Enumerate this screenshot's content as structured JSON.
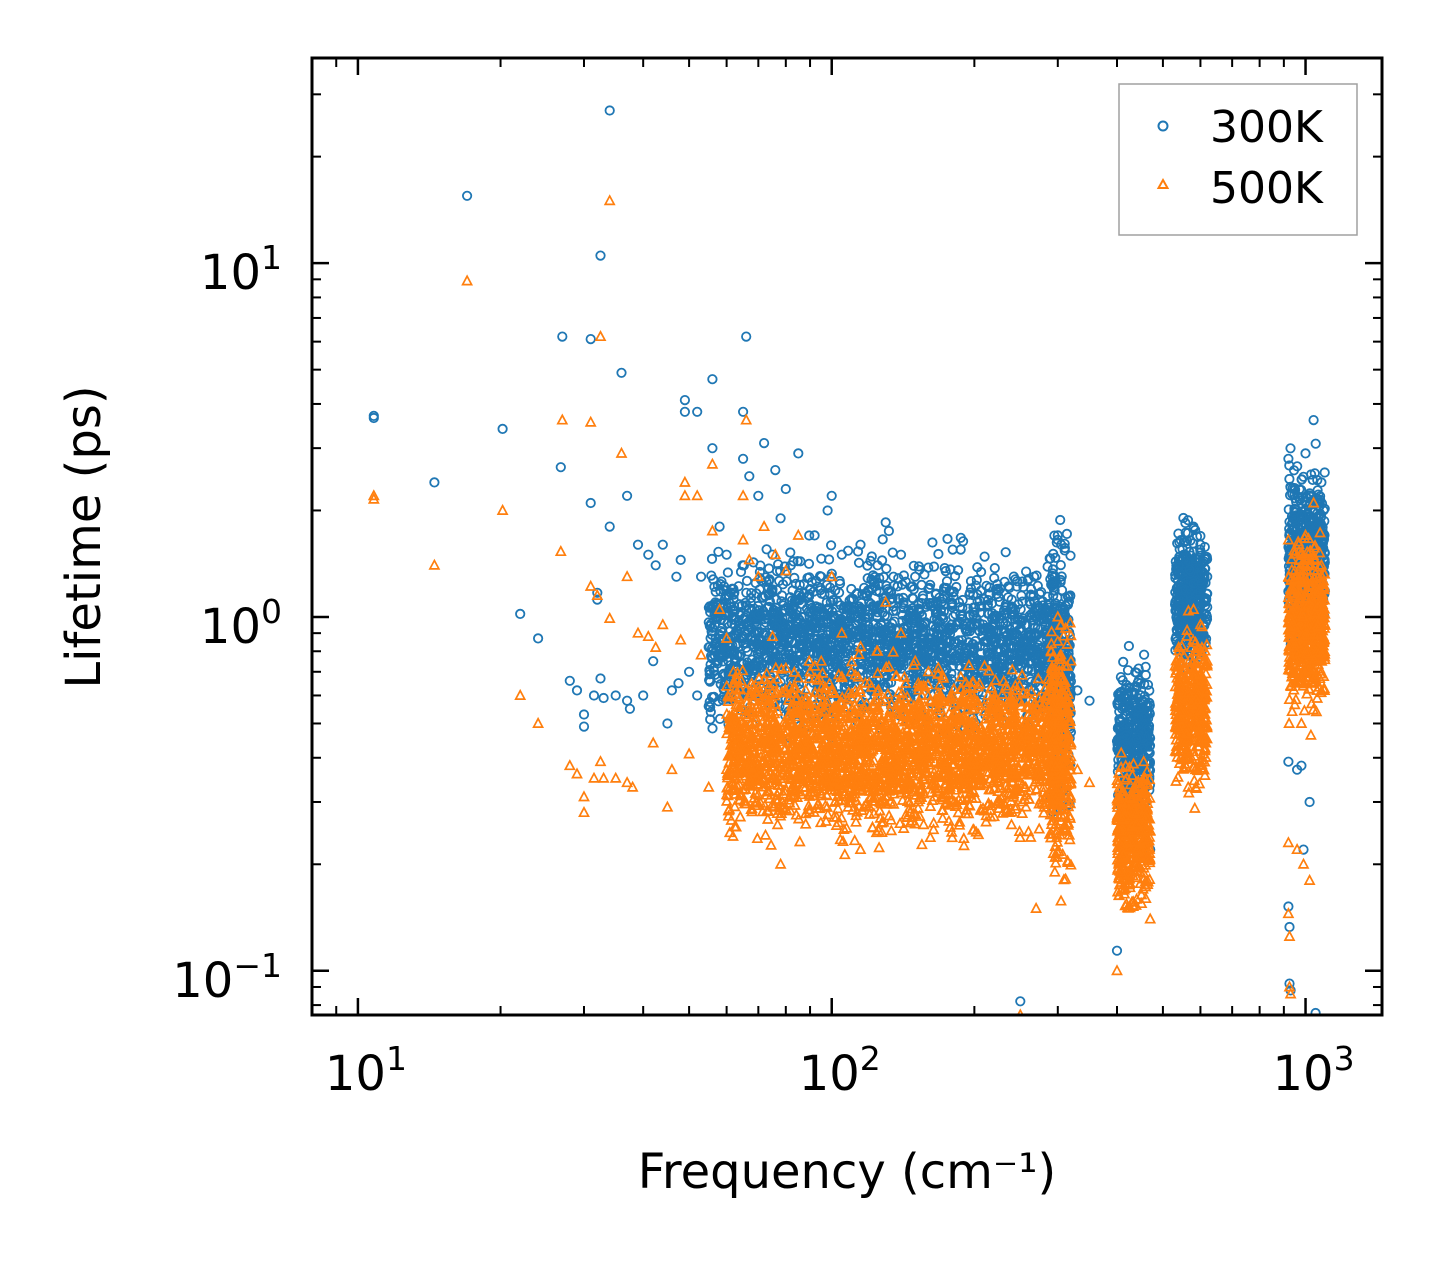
{
  "chart_data": {
    "type": "scatter",
    "xscale": "log",
    "yscale": "log",
    "xlabel": "Frequency (cm⁻¹)",
    "ylabel": "Lifetime (ps)",
    "xlim": [
      8.0,
      1450
    ],
    "ylim": [
      0.075,
      38
    ],
    "x_ticks": [
      {
        "base": "10",
        "exp": "1"
      },
      {
        "base": "10",
        "exp": "2"
      },
      {
        "base": "10",
        "exp": "3"
      }
    ],
    "y_ticks": [
      {
        "base": "10",
        "exp": "−1"
      },
      {
        "base": "10",
        "exp": "0"
      },
      {
        "base": "10",
        "exp": "1"
      }
    ],
    "legend_position": "top-right",
    "series": [
      {
        "name": "300K",
        "marker": "circle",
        "color": "#1f77b4",
        "points": [
          [
            10.8,
            3.7
          ],
          [
            10.8,
            3.65
          ],
          [
            14.5,
            2.4
          ],
          [
            17.0,
            15.5
          ],
          [
            20.2,
            3.4
          ],
          [
            22.0,
            1.02
          ],
          [
            24.0,
            0.87
          ],
          [
            27.0,
            6.2
          ],
          [
            26.8,
            2.65
          ],
          [
            28.0,
            0.66
          ],
          [
            29.0,
            0.62
          ],
          [
            30.0,
            0.53
          ],
          [
            30.0,
            0.49
          ],
          [
            31.0,
            6.1
          ],
          [
            31.0,
            2.1
          ],
          [
            31.5,
            0.6
          ],
          [
            32.0,
            1.17
          ],
          [
            32.0,
            1.12
          ],
          [
            32.5,
            10.5
          ],
          [
            32.5,
            0.67
          ],
          [
            33.0,
            0.59
          ],
          [
            34.0,
            27.0
          ],
          [
            34.0,
            1.8
          ],
          [
            35.0,
            0.6
          ],
          [
            36.0,
            4.9
          ],
          [
            37.0,
            2.2
          ],
          [
            37.0,
            0.58
          ],
          [
            37.5,
            0.55
          ],
          [
            39.0,
            1.6
          ],
          [
            40.0,
            0.6
          ],
          [
            41.0,
            1.5
          ],
          [
            42.0,
            0.75
          ],
          [
            42.5,
            1.4
          ],
          [
            44.0,
            1.6
          ],
          [
            45.0,
            0.5
          ],
          [
            46.0,
            0.62
          ],
          [
            47.0,
            1.3
          ],
          [
            47.5,
            0.65
          ],
          [
            48.0,
            1.45
          ],
          [
            49.0,
            4.1
          ],
          [
            49.0,
            3.8
          ],
          [
            50.0,
            0.7
          ],
          [
            52.0,
            3.8
          ],
          [
            52.0,
            0.6
          ],
          [
            53.0,
            1.3
          ],
          [
            55.0,
            0.56
          ],
          [
            56.0,
            4.7
          ],
          [
            56.0,
            3.0
          ],
          [
            57.0,
            0.85
          ],
          [
            58.0,
            1.8
          ],
          [
            60.0,
            1.5
          ],
          [
            62.0,
            1.2
          ],
          [
            63.0,
            0.72
          ],
          [
            65.0,
            3.8
          ],
          [
            65.0,
            2.8
          ],
          [
            66.0,
            6.2
          ],
          [
            67.0,
            2.5
          ],
          [
            68.0,
            0.5
          ],
          [
            70.0,
            2.2
          ],
          [
            72.0,
            3.1
          ],
          [
            75.0,
            1.5
          ],
          [
            76.0,
            2.6
          ],
          [
            78.0,
            1.9
          ],
          [
            80.0,
            2.3
          ],
          [
            82.0,
            1.4
          ],
          [
            85.0,
            2.9
          ],
          [
            90.0,
            1.2
          ],
          [
            92.0,
            1.7
          ],
          [
            95.0,
            1.3
          ],
          [
            98.0,
            2.0
          ],
          [
            100.0,
            2.2
          ],
          [
            105.0,
            1.5
          ],
          [
            110.0,
            1.2
          ],
          [
            115.0,
            1.6
          ],
          [
            120.0,
            1.1
          ],
          [
            125.0,
            1.4
          ],
          [
            130.0,
            1.85
          ],
          [
            132.0,
            1.75
          ],
          [
            135.0,
            1.3
          ],
          [
            140.0,
            1.5
          ],
          [
            150.0,
            1.3
          ],
          [
            160.0,
            1.2
          ],
          [
            170.0,
            1.05
          ],
          [
            180.0,
            1.55
          ],
          [
            200.0,
            0.95
          ],
          [
            205.0,
            1.07
          ],
          [
            220.0,
            0.78
          ],
          [
            240.0,
            0.72
          ],
          [
            250.0,
            0.082
          ],
          [
            260.0,
            0.62
          ],
          [
            280.0,
            0.55
          ],
          [
            300.0,
            1.7
          ],
          [
            305.0,
            1.6
          ],
          [
            310.0,
            0.8
          ],
          [
            330.0,
            0.62
          ],
          [
            350.0,
            0.58
          ],
          [
            400.0,
            0.114
          ],
          [
            410.0,
            0.55
          ],
          [
            420.0,
            0.6
          ],
          [
            440.0,
            0.45
          ],
          [
            460.0,
            0.28
          ],
          [
            470.0,
            0.22
          ],
          [
            540.0,
            1.4
          ],
          [
            550.0,
            1.2
          ],
          [
            580.0,
            1.8
          ],
          [
            600.0,
            1.6
          ],
          [
            620.0,
            1.3
          ],
          [
            920.0,
            2.8
          ],
          [
            920.0,
            0.39
          ],
          [
            920.0,
            0.152
          ],
          [
            925.0,
            0.133
          ],
          [
            925.0,
            0.092
          ],
          [
            930.0,
            0.088
          ],
          [
            960.0,
            0.37
          ],
          [
            980.0,
            0.38
          ],
          [
            990.0,
            0.22
          ],
          [
            1000.0,
            2.9
          ],
          [
            1020.0,
            0.3
          ],
          [
            1040.0,
            3.6
          ],
          [
            1050.0,
            0.076
          ],
          [
            1080.0,
            2.4
          ]
        ]
      },
      {
        "name": "500K",
        "marker": "triangle",
        "color": "#ff7f0e",
        "points": [
          [
            10.8,
            2.2
          ],
          [
            10.8,
            2.15
          ],
          [
            14.5,
            1.4
          ],
          [
            17.0,
            8.9
          ],
          [
            20.2,
            2.0
          ],
          [
            22.0,
            0.6
          ],
          [
            24.0,
            0.5
          ],
          [
            27.0,
            3.6
          ],
          [
            26.8,
            1.53
          ],
          [
            28.0,
            0.38
          ],
          [
            29.0,
            0.36
          ],
          [
            30.0,
            0.31
          ],
          [
            30.0,
            0.28
          ],
          [
            31.0,
            3.55
          ],
          [
            31.0,
            1.22
          ],
          [
            31.5,
            0.35
          ],
          [
            32.0,
            1.15
          ],
          [
            32.5,
            6.2
          ],
          [
            32.5,
            0.39
          ],
          [
            33.0,
            0.35
          ],
          [
            34.0,
            15.0
          ],
          [
            34.0,
            0.99
          ],
          [
            35.0,
            0.35
          ],
          [
            36.0,
            2.9
          ],
          [
            37.0,
            1.3
          ],
          [
            37.0,
            0.34
          ],
          [
            38.0,
            0.33
          ],
          [
            39.0,
            0.9
          ],
          [
            41.0,
            0.88
          ],
          [
            42.0,
            0.44
          ],
          [
            42.5,
            0.82
          ],
          [
            44.0,
            0.95
          ],
          [
            45.0,
            0.29
          ],
          [
            46.0,
            0.37
          ],
          [
            48.0,
            0.86
          ],
          [
            49.0,
            2.4
          ],
          [
            49.0,
            2.2
          ],
          [
            50.0,
            0.41
          ],
          [
            52.0,
            2.2
          ],
          [
            53.0,
            0.78
          ],
          [
            55.0,
            0.33
          ],
          [
            56.0,
            2.7
          ],
          [
            56.0,
            1.75
          ],
          [
            58.0,
            1.05
          ],
          [
            60.0,
            0.87
          ],
          [
            62.0,
            0.7
          ],
          [
            63.0,
            0.42
          ],
          [
            65.0,
            2.2
          ],
          [
            65.0,
            1.65
          ],
          [
            66.0,
            3.6
          ],
          [
            67.0,
            1.45
          ],
          [
            70.0,
            1.3
          ],
          [
            72.0,
            1.8
          ],
          [
            75.0,
            0.88
          ],
          [
            76.0,
            1.5
          ],
          [
            78.0,
            0.2
          ],
          [
            80.0,
            1.35
          ],
          [
            85.0,
            1.7
          ],
          [
            90.0,
            0.7
          ],
          [
            95.0,
            0.75
          ],
          [
            100.0,
            1.3
          ],
          [
            105.0,
            0.9
          ],
          [
            110.0,
            0.7
          ],
          [
            115.0,
            0.22
          ],
          [
            120.0,
            0.65
          ],
          [
            125.0,
            0.8
          ],
          [
            130.0,
            1.1
          ],
          [
            140.0,
            0.9
          ],
          [
            150.0,
            0.75
          ],
          [
            160.0,
            0.7
          ],
          [
            170.0,
            0.6
          ],
          [
            180.0,
            0.6
          ],
          [
            200.0,
            0.55
          ],
          [
            220.0,
            0.45
          ],
          [
            240.0,
            0.42
          ],
          [
            250.0,
            0.075
          ],
          [
            260.0,
            0.36
          ],
          [
            270.0,
            0.15
          ],
          [
            280.0,
            0.32
          ],
          [
            300.0,
            1.0
          ],
          [
            305.0,
            0.95
          ],
          [
            310.0,
            0.47
          ],
          [
            330.0,
            0.37
          ],
          [
            350.0,
            0.34
          ],
          [
            400.0,
            0.1
          ],
          [
            410.0,
            0.32
          ],
          [
            420.0,
            0.35
          ],
          [
            440.0,
            0.26
          ],
          [
            460.0,
            0.16
          ],
          [
            470.0,
            0.14
          ],
          [
            540.0,
            0.82
          ],
          [
            550.0,
            0.7
          ],
          [
            580.0,
            1.05
          ],
          [
            600.0,
            0.95
          ],
          [
            620.0,
            0.75
          ],
          [
            920.0,
            1.65
          ],
          [
            920.0,
            0.23
          ],
          [
            920.0,
            0.145
          ],
          [
            925.0,
            0.125
          ],
          [
            925.0,
            0.09
          ],
          [
            930.0,
            0.086
          ],
          [
            960.0,
            0.22
          ],
          [
            980.0,
            0.5
          ],
          [
            990.0,
            0.2
          ],
          [
            1000.0,
            1.7
          ],
          [
            1020.0,
            0.18
          ],
          [
            1040.0,
            2.1
          ],
          [
            1080.0,
            1.4
          ]
        ]
      }
    ],
    "dense_clusters": [
      {
        "series": 0,
        "x_range": [
          55,
          300
        ],
        "y_center": 0.85,
        "y_spread": 1.6,
        "count": 2200
      },
      {
        "series": 0,
        "x_range": [
          290,
          320
        ],
        "y_center": 0.7,
        "y_spread": 2.2,
        "count": 300
      },
      {
        "series": 0,
        "x_range": [
          400,
          470
        ],
        "y_center": 0.45,
        "y_spread": 1.5,
        "count": 380
      },
      {
        "series": 0,
        "x_range": [
          530,
          620
        ],
        "y_center": 1.15,
        "y_spread": 1.5,
        "count": 380
      },
      {
        "series": 0,
        "x_range": [
          920,
          1100
        ],
        "y_center": 1.5,
        "y_spread": 1.6,
        "count": 520
      },
      {
        "series": 1,
        "x_range": [
          60,
          300
        ],
        "y_center": 0.42,
        "y_spread": 1.6,
        "count": 2600
      },
      {
        "series": 1,
        "x_range": [
          290,
          320
        ],
        "y_center": 0.42,
        "y_spread": 2.1,
        "count": 300
      },
      {
        "series": 1,
        "x_range": [
          400,
          470
        ],
        "y_center": 0.24,
        "y_spread": 1.5,
        "count": 380
      },
      {
        "series": 1,
        "x_range": [
          530,
          620
        ],
        "y_center": 0.55,
        "y_spread": 1.6,
        "count": 380
      },
      {
        "series": 1,
        "x_range": [
          920,
          1100
        ],
        "y_center": 0.95,
        "y_spread": 1.6,
        "count": 520
      }
    ]
  }
}
